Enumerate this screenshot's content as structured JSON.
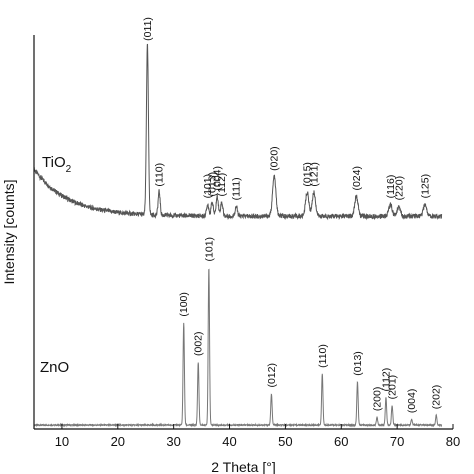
{
  "chart_data": {
    "type": "line",
    "title": "",
    "xlabel": "2 Theta [°]",
    "ylabel": "Intensity [counts]",
    "xlim": [
      5,
      80
    ],
    "ylim": [
      0,
      100
    ],
    "xticks": [
      10,
      20,
      30,
      40,
      50,
      60,
      70,
      80
    ],
    "grid": false,
    "series": [
      {
        "name": "TiO2",
        "offset": 52,
        "baseline": 2,
        "background": {
          "amp": 12,
          "decay": 6
        },
        "peaks": [
          {
            "label": "(011)",
            "x": 25.3,
            "height": 43,
            "width": 0.18
          },
          {
            "label": "(110)",
            "x": 27.4,
            "height": 6,
            "width": 0.18
          },
          {
            "label": "(101)",
            "x": 36.1,
            "height": 3,
            "width": 0.2
          },
          {
            "label": "(013)",
            "x": 36.9,
            "height": 3.5,
            "width": 0.2
          },
          {
            "label": "(004)",
            "x": 37.8,
            "height": 5,
            "width": 0.2
          },
          {
            "label": "(112)",
            "x": 38.6,
            "height": 3.5,
            "width": 0.2
          },
          {
            "label": "(111)",
            "x": 41.2,
            "height": 2.5,
            "width": 0.2
          },
          {
            "label": "(020)",
            "x": 48.0,
            "height": 10,
            "width": 0.3
          },
          {
            "label": "(015)",
            "x": 53.9,
            "height": 6,
            "width": 0.3
          },
          {
            "label": "(121)",
            "x": 55.1,
            "height": 6,
            "width": 0.3
          },
          {
            "label": "(024)",
            "x": 62.7,
            "height": 5,
            "width": 0.3
          },
          {
            "label": "(116)",
            "x": 68.8,
            "height": 3,
            "width": 0.3
          },
          {
            "label": "(220)",
            "x": 70.3,
            "height": 2.5,
            "width": 0.3
          },
          {
            "label": "(125)",
            "x": 75.0,
            "height": 3,
            "width": 0.3
          }
        ]
      },
      {
        "name": "ZnO",
        "offset": 0,
        "baseline": 1,
        "background": {
          "amp": 0,
          "decay": 6
        },
        "peaks": [
          {
            "label": "(100)",
            "x": 31.8,
            "height": 26,
            "width": 0.12
          },
          {
            "label": "(002)",
            "x": 34.4,
            "height": 16,
            "width": 0.12
          },
          {
            "label": "(101)",
            "x": 36.3,
            "height": 40,
            "width": 0.12
          },
          {
            "label": "(012)",
            "x": 47.5,
            "height": 8,
            "width": 0.12
          },
          {
            "label": "(110)",
            "x": 56.6,
            "height": 13,
            "width": 0.12
          },
          {
            "label": "(013)",
            "x": 62.9,
            "height": 11,
            "width": 0.12
          },
          {
            "label": "(200)",
            "x": 66.4,
            "height": 2,
            "width": 0.12
          },
          {
            "label": "(112)",
            "x": 68.0,
            "height": 7,
            "width": 0.12
          },
          {
            "label": "(201)",
            "x": 69.1,
            "height": 5,
            "width": 0.12
          },
          {
            "label": "(004)",
            "x": 72.6,
            "height": 1.5,
            "width": 0.12
          },
          {
            "label": "(202)",
            "x": 77.0,
            "height": 2.5,
            "width": 0.12
          }
        ]
      }
    ],
    "sample_labels": [
      {
        "main": "TiO",
        "sub": "2"
      },
      {
        "main": "ZnO",
        "sub": ""
      }
    ],
    "colors": {
      "TiO2": "#555555",
      "ZnO": "#777777",
      "axis": "#111111"
    }
  }
}
